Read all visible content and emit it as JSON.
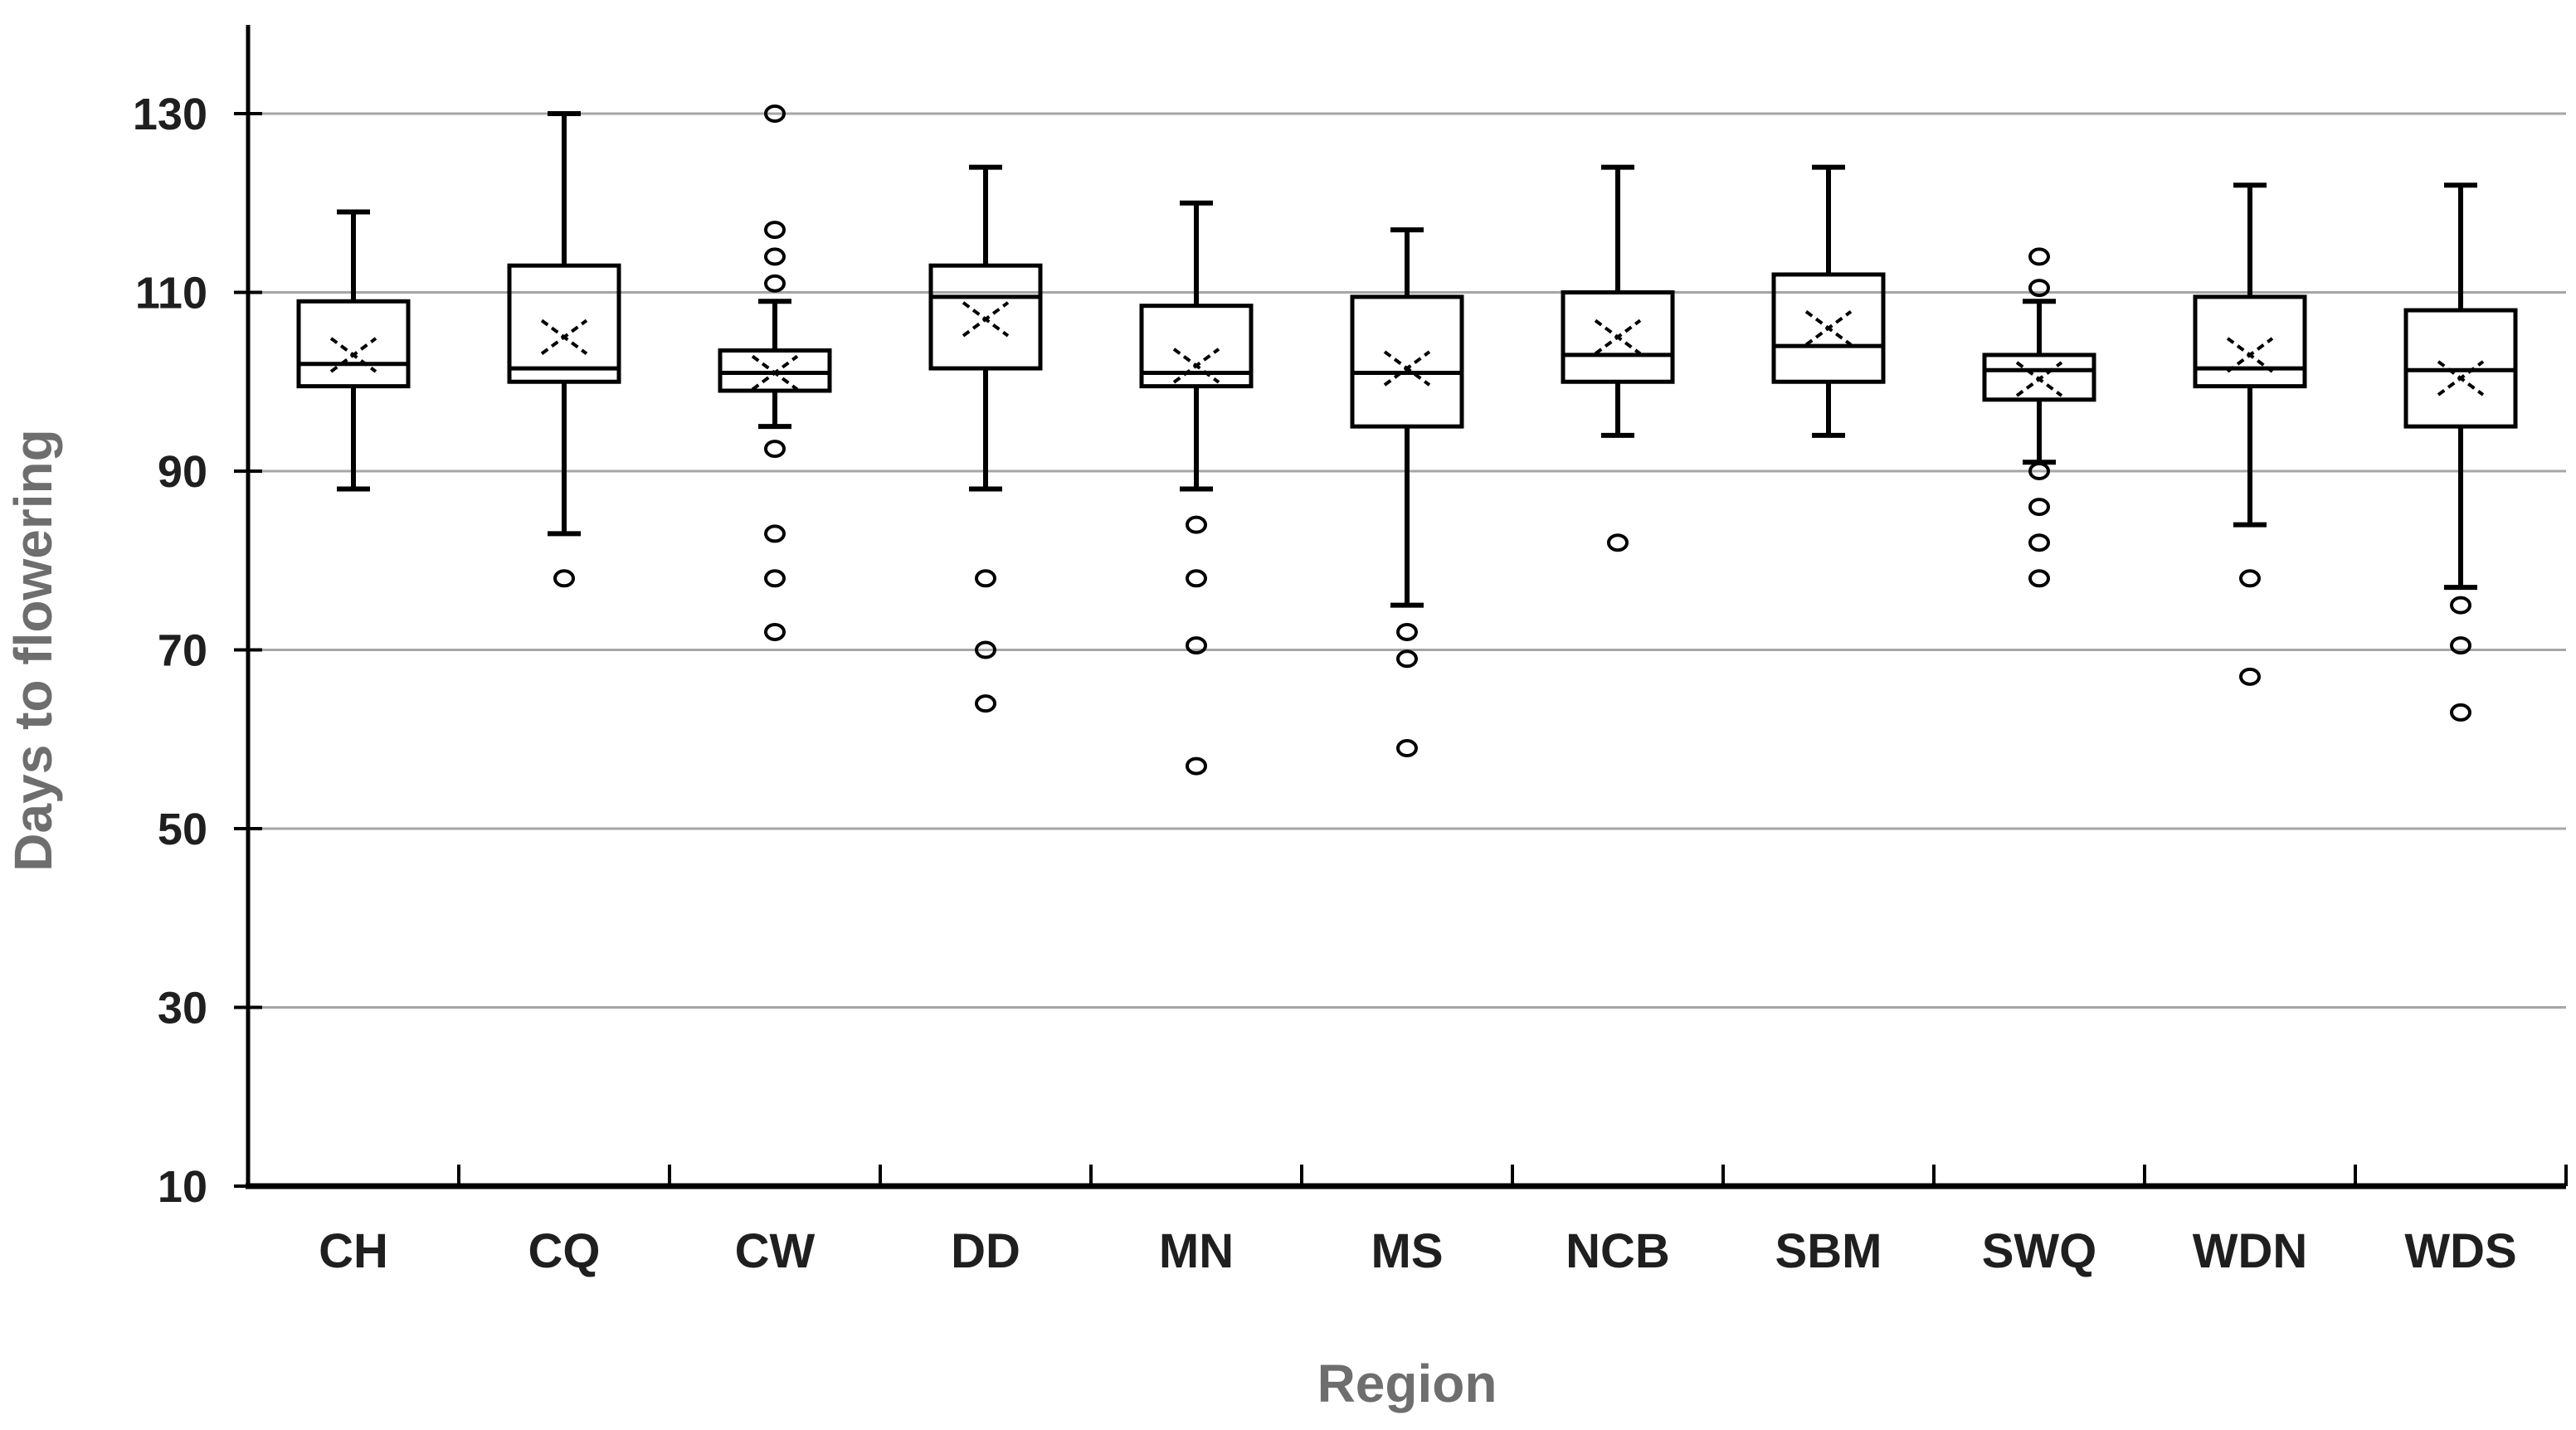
{
  "chart_data": {
    "type": "boxplot",
    "title": "",
    "xlabel": "Region",
    "ylabel": "Days to flowering",
    "ylim": [
      10,
      137
    ],
    "yticks": [
      10,
      30,
      50,
      70,
      90,
      110,
      130
    ],
    "grid": true,
    "legend": "none",
    "categories": [
      "CH",
      "CQ",
      "CW",
      "DD",
      "MN",
      "MS",
      "NCB",
      "SBM",
      "SWQ",
      "WDN",
      "WDS"
    ],
    "series": [
      {
        "region": "CH",
        "whisker_low": 88,
        "q1": 99.5,
        "median": 102,
        "mean": 103,
        "q3": 109,
        "whisker_high": 119,
        "outliers": []
      },
      {
        "region": "CQ",
        "whisker_low": 83,
        "q1": 100,
        "median": 101.5,
        "mean": 105,
        "q3": 113,
        "whisker_high": 130,
        "outliers": [
          78
        ]
      },
      {
        "region": "CW",
        "whisker_low": 95,
        "q1": 99,
        "median": 101,
        "mean": 101,
        "q3": 103.5,
        "whisker_high": 109,
        "outliers": [
          130,
          117,
          114,
          111,
          92.5,
          83,
          78,
          72
        ]
      },
      {
        "region": "DD",
        "whisker_low": 88,
        "q1": 101.5,
        "median": 109.5,
        "mean": 107,
        "q3": 113,
        "whisker_high": 124,
        "outliers": [
          78,
          70,
          64
        ]
      },
      {
        "region": "MN",
        "whisker_low": 88,
        "q1": 99.5,
        "median": 101,
        "mean": 101.8,
        "q3": 108.5,
        "whisker_high": 120,
        "outliers": [
          84,
          78,
          70.5,
          57
        ]
      },
      {
        "region": "MS",
        "whisker_low": 75,
        "q1": 95,
        "median": 101,
        "mean": 101.5,
        "q3": 109.5,
        "whisker_high": 117,
        "outliers": [
          72,
          69,
          59
        ]
      },
      {
        "region": "NCB",
        "whisker_low": 94,
        "q1": 100,
        "median": 103,
        "mean": 105,
        "q3": 110,
        "whisker_high": 124,
        "outliers": [
          82
        ]
      },
      {
        "region": "SBM",
        "whisker_low": 94,
        "q1": 100,
        "median": 104,
        "mean": 106,
        "q3": 112,
        "whisker_high": 124,
        "outliers": []
      },
      {
        "region": "SWQ",
        "whisker_low": 91,
        "q1": 98,
        "median": 101.3,
        "mean": 100.3,
        "q3": 103,
        "whisker_high": 109,
        "outliers": [
          114,
          110.5,
          90,
          86,
          82,
          78
        ]
      },
      {
        "region": "WDN",
        "whisker_low": 84,
        "q1": 99.5,
        "median": 101.5,
        "mean": 103,
        "q3": 109.5,
        "whisker_high": 122,
        "outliers": [
          78,
          67
        ]
      },
      {
        "region": "WDS",
        "whisker_low": 77,
        "q1": 95,
        "median": 101.3,
        "mean": 100.4,
        "q3": 108,
        "whisker_high": 122,
        "outliers": [
          75,
          70.5,
          63
        ]
      }
    ],
    "colors": {
      "box_stroke": "#000000",
      "whisker": "#000000",
      "mean_marker": "#000000",
      "outlier": "#000000",
      "gridline": "#a6a6a6",
      "axis": "#000000",
      "tick_label": "#1f1f1f",
      "axis_title": "#6e6e6e",
      "background": "#ffffff"
    }
  }
}
